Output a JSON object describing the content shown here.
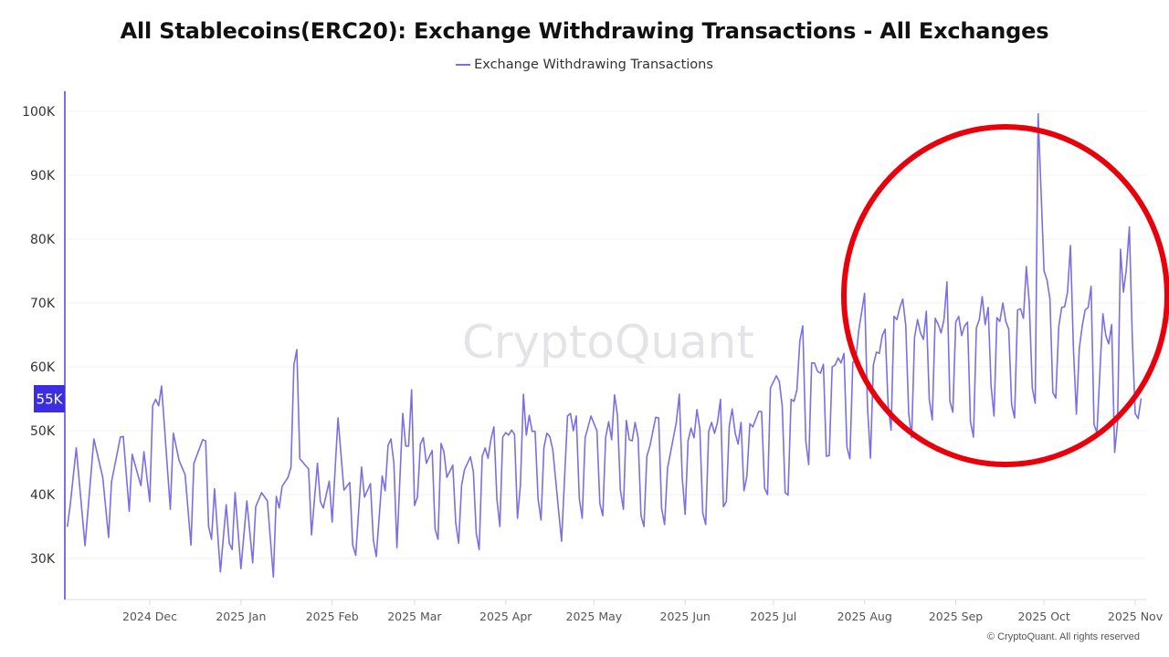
{
  "chart_data": {
    "type": "line",
    "title": "All Stablecoins(ERC20): Exchange Withdrawing Transactions - All Exchanges",
    "legend": {
      "position": "top-center",
      "entries": [
        "Exchange Withdrawing Transactions"
      ]
    },
    "series": [
      {
        "name": "Exchange Withdrawing Transactions",
        "color": "#7a6fe6"
      }
    ],
    "ylim": [
      25000,
      103000
    ],
    "y_ticks": [
      {
        "value": 30000,
        "label": "30K"
      },
      {
        "value": 40000,
        "label": "40K"
      },
      {
        "value": 50000,
        "label": "50K"
      },
      {
        "value": 60000,
        "label": "60K"
      },
      {
        "value": 70000,
        "label": "70K"
      },
      {
        "value": 80000,
        "label": "80K"
      },
      {
        "value": 90000,
        "label": "90K"
      },
      {
        "value": 100000,
        "label": "100K"
      }
    ],
    "x_ticks": [
      {
        "date": "2024-12-01",
        "label": "2024 Dec"
      },
      {
        "date": "2025-01-01",
        "label": "2025 Jan"
      },
      {
        "date": "2025-02-01",
        "label": "2025 Feb"
      },
      {
        "date": "2025-03-01",
        "label": "2025 Mar"
      },
      {
        "date": "2025-04-01",
        "label": "2025 Apr"
      },
      {
        "date": "2025-05-01",
        "label": "2025 May"
      },
      {
        "date": "2025-06-01",
        "label": "2025 Jun"
      },
      {
        "date": "2025-07-01",
        "label": "2025 Jul"
      },
      {
        "date": "2025-08-01",
        "label": "2025 Aug"
      },
      {
        "date": "2025-09-01",
        "label": "2025 Sep"
      },
      {
        "date": "2025-10-01",
        "label": "2025 Oct"
      },
      {
        "date": "2025-11-01",
        "label": "2025 Nov"
      }
    ],
    "grid": true,
    "current_value_badge": {
      "label": "55K",
      "value": 55000,
      "color": "#3b2ee0"
    },
    "annotation": {
      "shape": "circle",
      "color": "#e8000b",
      "date_range": [
        "2025-07-27",
        "2025-11-10"
      ]
    },
    "watermark": "CryptoQuant",
    "points": [
      [
        "2024-11-03",
        35000
      ],
      [
        "2024-11-04",
        38500
      ],
      [
        "2024-11-06",
        47300
      ],
      [
        "2024-11-09",
        32000
      ],
      [
        "2024-11-12",
        48700
      ],
      [
        "2024-11-15",
        42700
      ],
      [
        "2024-11-17",
        33300
      ],
      [
        "2024-11-18",
        42000
      ],
      [
        "2024-11-21",
        49000
      ],
      [
        "2024-11-22",
        49100
      ],
      [
        "2024-11-24",
        37400
      ],
      [
        "2024-11-25",
        46300
      ],
      [
        "2024-11-28",
        41400
      ],
      [
        "2024-11-29",
        46700
      ],
      [
        "2024-12-01",
        38900
      ],
      [
        "2024-12-02",
        53900
      ],
      [
        "2024-12-03",
        54900
      ],
      [
        "2024-12-04",
        53900
      ],
      [
        "2024-12-05",
        57000
      ],
      [
        "2024-12-08",
        37700
      ],
      [
        "2024-12-09",
        49600
      ],
      [
        "2024-12-11",
        45300
      ],
      [
        "2024-12-13",
        43100
      ],
      [
        "2024-12-15",
        32100
      ],
      [
        "2024-12-16",
        44900
      ],
      [
        "2024-12-19",
        48600
      ],
      [
        "2024-12-20",
        48400
      ],
      [
        "2024-12-21",
        35000
      ],
      [
        "2024-12-22",
        33000
      ],
      [
        "2024-12-23",
        40900
      ],
      [
        "2024-12-25",
        27900
      ],
      [
        "2024-12-27",
        38400
      ],
      [
        "2024-12-28",
        32400
      ],
      [
        "2024-12-29",
        31400
      ],
      [
        "2024-12-30",
        40300
      ],
      [
        "2025-01-01",
        28400
      ],
      [
        "2025-01-03",
        39000
      ],
      [
        "2025-01-05",
        29300
      ],
      [
        "2025-01-06",
        38100
      ],
      [
        "2025-01-08",
        40300
      ],
      [
        "2025-01-10",
        39000
      ],
      [
        "2025-01-12",
        27100
      ],
      [
        "2025-01-13",
        39700
      ],
      [
        "2025-01-14",
        37900
      ],
      [
        "2025-01-15",
        41300
      ],
      [
        "2025-01-17",
        42700
      ],
      [
        "2025-01-18",
        44300
      ],
      [
        "2025-01-19",
        60300
      ],
      [
        "2025-01-20",
        62700
      ],
      [
        "2025-01-21",
        45600
      ],
      [
        "2025-01-24",
        44000
      ],
      [
        "2025-01-25",
        33700
      ],
      [
        "2025-01-27",
        44900
      ],
      [
        "2025-01-28",
        38900
      ],
      [
        "2025-01-29",
        37900
      ],
      [
        "2025-01-31",
        42100
      ],
      [
        "2025-02-01",
        35700
      ],
      [
        "2025-02-03",
        52000
      ],
      [
        "2025-02-05",
        40700
      ],
      [
        "2025-02-07",
        41900
      ],
      [
        "2025-02-08",
        32100
      ],
      [
        "2025-02-09",
        30500
      ],
      [
        "2025-02-11",
        44300
      ],
      [
        "2025-02-12",
        39600
      ],
      [
        "2025-02-14",
        41700
      ],
      [
        "2025-02-15",
        32900
      ],
      [
        "2025-02-16",
        30300
      ],
      [
        "2025-02-18",
        42900
      ],
      [
        "2025-02-19",
        40600
      ],
      [
        "2025-02-20",
        47700
      ],
      [
        "2025-02-21",
        48700
      ],
      [
        "2025-02-22",
        44900
      ],
      [
        "2025-02-23",
        31700
      ],
      [
        "2025-02-25",
        52700
      ],
      [
        "2025-02-26",
        47600
      ],
      [
        "2025-02-27",
        47600
      ],
      [
        "2025-02-28",
        56400
      ],
      [
        "2025-03-01",
        38300
      ],
      [
        "2025-03-02",
        39600
      ],
      [
        "2025-03-03",
        47900
      ],
      [
        "2025-03-04",
        48900
      ],
      [
        "2025-03-05",
        44900
      ],
      [
        "2025-03-07",
        46900
      ],
      [
        "2025-03-08",
        34600
      ],
      [
        "2025-03-09",
        33000
      ],
      [
        "2025-03-10",
        48000
      ],
      [
        "2025-03-11",
        46700
      ],
      [
        "2025-03-12",
        42700
      ],
      [
        "2025-03-14",
        44600
      ],
      [
        "2025-03-15",
        35600
      ],
      [
        "2025-03-16",
        32400
      ],
      [
        "2025-03-17",
        41400
      ],
      [
        "2025-03-18",
        43900
      ],
      [
        "2025-03-20",
        45900
      ],
      [
        "2025-03-21",
        43600
      ],
      [
        "2025-03-22",
        33900
      ],
      [
        "2025-03-23",
        31400
      ],
      [
        "2025-03-24",
        46000
      ],
      [
        "2025-03-25",
        47300
      ],
      [
        "2025-03-26",
        45700
      ],
      [
        "2025-03-27",
        48700
      ],
      [
        "2025-03-28",
        50600
      ],
      [
        "2025-03-29",
        39300
      ],
      [
        "2025-03-30",
        35000
      ],
      [
        "2025-03-31",
        49000
      ],
      [
        "2025-04-01",
        49700
      ],
      [
        "2025-04-02",
        49300
      ],
      [
        "2025-04-03",
        50100
      ],
      [
        "2025-04-04",
        49400
      ],
      [
        "2025-04-05",
        36300
      ],
      [
        "2025-04-06",
        41400
      ],
      [
        "2025-04-07",
        55700
      ],
      [
        "2025-04-08",
        49300
      ],
      [
        "2025-04-09",
        52400
      ],
      [
        "2025-04-10",
        49900
      ],
      [
        "2025-04-11",
        49900
      ],
      [
        "2025-04-12",
        39300
      ],
      [
        "2025-04-13",
        36000
      ],
      [
        "2025-04-14",
        47400
      ],
      [
        "2025-04-15",
        49600
      ],
      [
        "2025-04-16",
        49100
      ],
      [
        "2025-04-17",
        47000
      ],
      [
        "2025-04-19",
        37400
      ],
      [
        "2025-04-20",
        32700
      ],
      [
        "2025-04-22",
        52300
      ],
      [
        "2025-04-23",
        52700
      ],
      [
        "2025-04-24",
        50000
      ],
      [
        "2025-04-25",
        52300
      ],
      [
        "2025-04-26",
        39400
      ],
      [
        "2025-04-27",
        36300
      ],
      [
        "2025-04-28",
        48900
      ],
      [
        "2025-04-30",
        52300
      ],
      [
        "2025-05-02",
        50000
      ],
      [
        "2025-05-03",
        38600
      ],
      [
        "2025-05-04",
        36700
      ],
      [
        "2025-05-05",
        49000
      ],
      [
        "2025-05-06",
        51400
      ],
      [
        "2025-05-07",
        48600
      ],
      [
        "2025-05-08",
        55600
      ],
      [
        "2025-05-09",
        52400
      ],
      [
        "2025-05-10",
        40700
      ],
      [
        "2025-05-11",
        37700
      ],
      [
        "2025-05-12",
        51600
      ],
      [
        "2025-05-13",
        48600
      ],
      [
        "2025-05-14",
        48400
      ],
      [
        "2025-05-15",
        51300
      ],
      [
        "2025-05-16",
        48900
      ],
      [
        "2025-05-17",
        36700
      ],
      [
        "2025-05-18",
        35000
      ],
      [
        "2025-05-19",
        46000
      ],
      [
        "2025-05-20",
        47600
      ],
      [
        "2025-05-22",
        52100
      ],
      [
        "2025-05-23",
        52000
      ],
      [
        "2025-05-24",
        37900
      ],
      [
        "2025-05-25",
        35300
      ],
      [
        "2025-05-26",
        44100
      ],
      [
        "2025-05-29",
        51300
      ],
      [
        "2025-05-30",
        55700
      ],
      [
        "2025-05-31",
        42700
      ],
      [
        "2025-06-01",
        36900
      ],
      [
        "2025-06-02",
        48400
      ],
      [
        "2025-06-03",
        50400
      ],
      [
        "2025-06-04",
        48900
      ],
      [
        "2025-06-05",
        53300
      ],
      [
        "2025-06-06",
        50300
      ],
      [
        "2025-06-07",
        37100
      ],
      [
        "2025-06-08",
        35300
      ],
      [
        "2025-06-09",
        49900
      ],
      [
        "2025-06-10",
        51300
      ],
      [
        "2025-06-11",
        49600
      ],
      [
        "2025-06-12",
        51300
      ],
      [
        "2025-06-13",
        54900
      ],
      [
        "2025-06-14",
        38100
      ],
      [
        "2025-06-15",
        38900
      ],
      [
        "2025-06-16",
        50700
      ],
      [
        "2025-06-17",
        53400
      ],
      [
        "2025-06-18",
        49600
      ],
      [
        "2025-06-19",
        47900
      ],
      [
        "2025-06-20",
        51300
      ],
      [
        "2025-06-21",
        40600
      ],
      [
        "2025-06-22",
        42900
      ],
      [
        "2025-06-23",
        51100
      ],
      [
        "2025-06-24",
        50600
      ],
      [
        "2025-06-26",
        53000
      ],
      [
        "2025-06-27",
        53000
      ],
      [
        "2025-06-28",
        41000
      ],
      [
        "2025-06-29",
        40000
      ],
      [
        "2025-06-30",
        56700
      ],
      [
        "2025-07-02",
        58600
      ],
      [
        "2025-07-03",
        57700
      ],
      [
        "2025-07-04",
        53900
      ],
      [
        "2025-07-05",
        40300
      ],
      [
        "2025-07-06",
        39900
      ],
      [
        "2025-07-07",
        54900
      ],
      [
        "2025-07-08",
        54600
      ],
      [
        "2025-07-09",
        56400
      ],
      [
        "2025-07-10",
        64100
      ],
      [
        "2025-07-11",
        66400
      ],
      [
        "2025-07-12",
        48400
      ],
      [
        "2025-07-13",
        44700
      ],
      [
        "2025-07-14",
        60600
      ],
      [
        "2025-07-15",
        60600
      ],
      [
        "2025-07-16",
        59300
      ],
      [
        "2025-07-17",
        59000
      ],
      [
        "2025-07-18",
        60400
      ],
      [
        "2025-07-19",
        46000
      ],
      [
        "2025-07-20",
        46100
      ],
      [
        "2025-07-21",
        60000
      ],
      [
        "2025-07-22",
        60300
      ],
      [
        "2025-07-23",
        61400
      ],
      [
        "2025-07-24",
        60600
      ],
      [
        "2025-07-25",
        62100
      ],
      [
        "2025-07-26",
        47400
      ],
      [
        "2025-07-27",
        45600
      ],
      [
        "2025-07-28",
        60700
      ],
      [
        "2025-07-29",
        61000
      ],
      [
        "2025-07-30",
        65600
      ],
      [
        "2025-08-01",
        71500
      ],
      [
        "2025-08-02",
        53600
      ],
      [
        "2025-08-03",
        45700
      ],
      [
        "2025-08-04",
        60300
      ],
      [
        "2025-08-05",
        62300
      ],
      [
        "2025-08-06",
        62100
      ],
      [
        "2025-08-07",
        64900
      ],
      [
        "2025-08-08",
        65900
      ],
      [
        "2025-08-09",
        54100
      ],
      [
        "2025-08-10",
        50100
      ],
      [
        "2025-08-11",
        67900
      ],
      [
        "2025-08-12",
        67400
      ],
      [
        "2025-08-13",
        69300
      ],
      [
        "2025-08-14",
        70600
      ],
      [
        "2025-08-15",
        66400
      ],
      [
        "2025-08-16",
        52700
      ],
      [
        "2025-08-17",
        48900
      ],
      [
        "2025-08-18",
        64600
      ],
      [
        "2025-08-19",
        67400
      ],
      [
        "2025-08-20",
        65300
      ],
      [
        "2025-08-21",
        64300
      ],
      [
        "2025-08-22",
        68700
      ],
      [
        "2025-08-23",
        54900
      ],
      [
        "2025-08-24",
        51700
      ],
      [
        "2025-08-25",
        67600
      ],
      [
        "2025-08-26",
        66700
      ],
      [
        "2025-08-27",
        65300
      ],
      [
        "2025-08-28",
        67400
      ],
      [
        "2025-08-29",
        73300
      ],
      [
        "2025-08-30",
        54600
      ],
      [
        "2025-08-31",
        52900
      ],
      [
        "2025-09-01",
        67000
      ],
      [
        "2025-09-02",
        67900
      ],
      [
        "2025-09-03",
        64900
      ],
      [
        "2025-09-04",
        66400
      ],
      [
        "2025-09-05",
        67000
      ],
      [
        "2025-09-06",
        51400
      ],
      [
        "2025-09-07",
        49000
      ],
      [
        "2025-09-08",
        66100
      ],
      [
        "2025-09-09",
        67400
      ],
      [
        "2025-09-10",
        71000
      ],
      [
        "2025-09-11",
        66600
      ],
      [
        "2025-09-12",
        69300
      ],
      [
        "2025-09-13",
        57000
      ],
      [
        "2025-09-14",
        52300
      ],
      [
        "2025-09-15",
        67700
      ],
      [
        "2025-09-16",
        67100
      ],
      [
        "2025-09-17",
        70000
      ],
      [
        "2025-09-18",
        67100
      ],
      [
        "2025-09-19",
        65900
      ],
      [
        "2025-09-20",
        54100
      ],
      [
        "2025-09-21",
        52000
      ],
      [
        "2025-09-22",
        68900
      ],
      [
        "2025-09-23",
        69100
      ],
      [
        "2025-09-24",
        67600
      ],
      [
        "2025-09-25",
        75700
      ],
      [
        "2025-09-26",
        70000
      ],
      [
        "2025-09-27",
        56700
      ],
      [
        "2025-09-28",
        54300
      ],
      [
        "2025-09-29",
        99600
      ],
      [
        "2025-10-01",
        75000
      ],
      [
        "2025-10-02",
        73600
      ],
      [
        "2025-10-03",
        70700
      ],
      [
        "2025-10-04",
        56000
      ],
      [
        "2025-10-05",
        55100
      ],
      [
        "2025-10-06",
        66300
      ],
      [
        "2025-10-07",
        69300
      ],
      [
        "2025-10-08",
        69400
      ],
      [
        "2025-10-09",
        71700
      ],
      [
        "2025-10-10",
        79000
      ],
      [
        "2025-10-11",
        62700
      ],
      [
        "2025-10-12",
        52600
      ],
      [
        "2025-10-13",
        62900
      ],
      [
        "2025-10-14",
        66400
      ],
      [
        "2025-10-15",
        68900
      ],
      [
        "2025-10-16",
        69300
      ],
      [
        "2025-10-17",
        72600
      ],
      [
        "2025-10-18",
        51000
      ],
      [
        "2025-10-19",
        49600
      ],
      [
        "2025-10-20",
        59100
      ],
      [
        "2025-10-21",
        68300
      ],
      [
        "2025-10-22",
        64900
      ],
      [
        "2025-10-23",
        63600
      ],
      [
        "2025-10-24",
        66600
      ],
      [
        "2025-10-25",
        46600
      ],
      [
        "2025-10-26",
        51300
      ],
      [
        "2025-10-27",
        78400
      ],
      [
        "2025-10-28",
        71700
      ],
      [
        "2025-10-29",
        75300
      ],
      [
        "2025-10-30",
        81900
      ],
      [
        "2025-10-31",
        64600
      ],
      [
        "2025-11-01",
        52700
      ],
      [
        "2025-11-02",
        51900
      ],
      [
        "2025-11-03",
        55000
      ]
    ]
  },
  "footer": {
    "copyright": "© CryptoQuant. All rights reserved"
  }
}
